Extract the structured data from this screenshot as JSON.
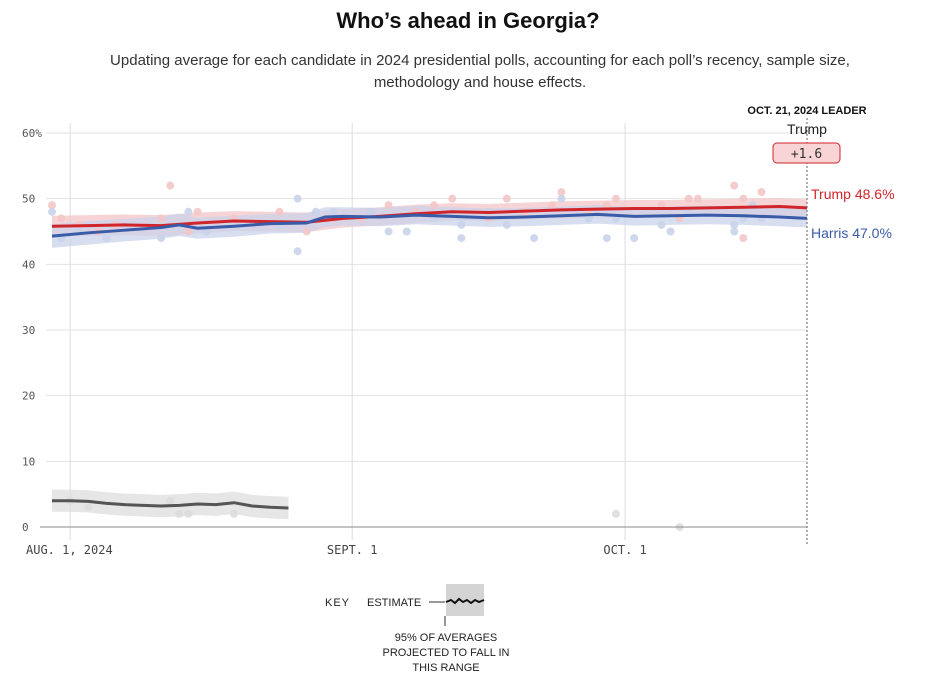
{
  "title": "Who’s ahead in Georgia?",
  "subtitle": "Updating average for each candidate in 2024 presidential polls, accounting for each poll’s recency, sample size, methodology and house effects.",
  "leader": {
    "header": "OCT. 21, 2024 LEADER",
    "name": "Trump",
    "margin": "+1.6"
  },
  "key": {
    "label": "KEY",
    "estimate": "ESTIMATE",
    "range_lines": [
      "95% OF AVERAGES",
      "PROJECTED TO FALL IN",
      "THIS RANGE"
    ]
  },
  "colors": {
    "trump": "#d0262b",
    "harris": "#3a5ba8",
    "other": "#555555",
    "trump_band": "#f3c6c8",
    "harris_band": "#c9d3ea",
    "other_band": "#dddddd"
  },
  "chart_data": {
    "type": "line",
    "y_tick_labels": [
      "60%",
      "50",
      "40",
      "30",
      "20",
      "10",
      "0"
    ],
    "y_ticks": [
      60,
      50,
      40,
      30,
      20,
      10,
      0
    ],
    "ylim": [
      0,
      60
    ],
    "x_tick_labels": [
      "AUG. 1, 2024",
      "SEPT. 1",
      "OCT. 1"
    ],
    "x_ticks": [
      1,
      32,
      62
    ],
    "xlim": [
      -1,
      82
    ],
    "x_end": 82,
    "grid": true,
    "series": [
      {
        "name": "Trump",
        "end_label": "Trump 48.6%",
        "key": "trump",
        "x": [
          -1,
          3,
          7,
          11,
          15,
          19,
          23,
          27,
          31,
          35,
          39,
          43,
          47,
          51,
          55,
          59,
          63,
          67,
          71,
          75,
          79,
          82
        ],
        "values": [
          45.8,
          45.9,
          46.0,
          45.9,
          46.3,
          46.6,
          46.5,
          46.4,
          47.0,
          47.3,
          47.7,
          48.0,
          47.9,
          48.1,
          48.3,
          48.4,
          48.5,
          48.5,
          48.6,
          48.7,
          48.8,
          48.6
        ],
        "band": [
          1.6,
          1.6,
          1.6,
          1.6,
          1.6,
          1.5,
          1.5,
          1.5,
          1.4,
          1.4,
          1.4,
          1.3,
          1.3,
          1.3,
          1.3,
          1.3,
          1.3,
          1.3,
          1.3,
          1.3,
          1.3,
          1.3
        ],
        "polls": [
          [
            -1,
            49
          ],
          [
            0,
            47
          ],
          [
            2,
            46
          ],
          [
            4,
            45
          ],
          [
            6,
            46
          ],
          [
            11,
            47
          ],
          [
            12,
            52
          ],
          [
            14,
            45
          ],
          [
            15,
            48
          ],
          [
            19,
            47
          ],
          [
            24,
            48
          ],
          [
            27,
            45
          ],
          [
            30,
            47
          ],
          [
            33,
            47
          ],
          [
            36,
            49
          ],
          [
            39,
            48
          ],
          [
            41,
            49
          ],
          [
            43,
            50
          ],
          [
            47,
            47
          ],
          [
            49,
            50
          ],
          [
            51,
            48
          ],
          [
            54,
            49
          ],
          [
            55,
            51
          ],
          [
            58,
            48
          ],
          [
            60,
            49
          ],
          [
            61,
            50
          ],
          [
            66,
            49
          ],
          [
            68,
            47
          ],
          [
            69,
            50
          ],
          [
            70,
            50
          ],
          [
            74,
            52
          ],
          [
            75,
            50
          ],
          [
            76,
            49
          ],
          [
            77,
            51
          ],
          [
            75,
            44
          ]
        ]
      },
      {
        "name": "Harris",
        "end_label": "Harris 47.0%",
        "key": "harris",
        "x": [
          -1,
          3,
          7,
          11,
          13,
          15,
          19,
          23,
          27,
          29,
          31,
          35,
          39,
          43,
          47,
          51,
          55,
          59,
          63,
          67,
          71,
          75,
          79,
          82
        ],
        "values": [
          44.3,
          44.8,
          45.2,
          45.6,
          46.0,
          45.5,
          45.8,
          46.2,
          46.3,
          47.2,
          47.3,
          47.2,
          47.5,
          47.3,
          47.1,
          47.2,
          47.4,
          47.6,
          47.3,
          47.4,
          47.5,
          47.4,
          47.2,
          47.0
        ],
        "band": [
          1.8,
          1.8,
          1.7,
          1.7,
          1.7,
          1.6,
          1.6,
          1.5,
          1.5,
          1.5,
          1.4,
          1.4,
          1.4,
          1.4,
          1.4,
          1.4,
          1.4,
          1.4,
          1.4,
          1.4,
          1.4,
          1.4,
          1.4,
          1.4
        ],
        "polls": [
          [
            -1,
            48
          ],
          [
            0,
            44
          ],
          [
            2,
            45
          ],
          [
            5,
            44
          ],
          [
            11,
            44
          ],
          [
            14,
            48
          ],
          [
            16,
            45
          ],
          [
            24,
            46
          ],
          [
            26,
            42
          ],
          [
            26,
            50
          ],
          [
            28,
            48
          ],
          [
            30,
            48
          ],
          [
            34,
            48
          ],
          [
            36,
            45
          ],
          [
            38,
            45
          ],
          [
            41,
            47
          ],
          [
            44,
            44
          ],
          [
            44,
            46
          ],
          [
            47,
            48
          ],
          [
            49,
            46
          ],
          [
            52,
            44
          ],
          [
            55,
            50
          ],
          [
            58,
            47
          ],
          [
            60,
            44
          ],
          [
            61,
            47
          ],
          [
            63,
            44
          ],
          [
            66,
            46
          ],
          [
            67,
            45
          ],
          [
            69,
            48
          ],
          [
            74,
            45
          ],
          [
            74,
            46
          ],
          [
            75,
            47
          ],
          [
            76,
            49
          ],
          [
            77,
            47
          ]
        ]
      },
      {
        "name": "",
        "key": "other",
        "x": [
          -1,
          1,
          3,
          5,
          7,
          9,
          11,
          13,
          15,
          17,
          19,
          21,
          23,
          25
        ],
        "values": [
          4.0,
          4.0,
          3.9,
          3.6,
          3.4,
          3.3,
          3.2,
          3.3,
          3.5,
          3.4,
          3.7,
          3.2,
          3.0,
          2.9
        ],
        "band": [
          1.7,
          1.7,
          1.7,
          1.7,
          1.7,
          1.7,
          1.7,
          1.7,
          1.7,
          1.7,
          1.7,
          1.7,
          1.7,
          1.7
        ],
        "polls": [
          [
            1,
            4
          ],
          [
            3,
            3
          ],
          [
            12,
            4
          ],
          [
            13,
            2
          ],
          [
            14,
            2
          ],
          [
            19,
            2
          ],
          [
            61,
            2
          ],
          [
            68,
            0
          ]
        ]
      }
    ]
  }
}
